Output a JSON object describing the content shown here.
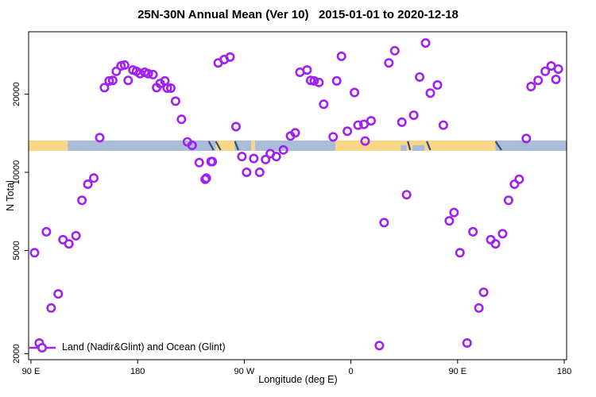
{
  "title": "25N-30N Annual Mean (Ver 10)   2015-01-01 to 2020-12-18",
  "chart_data": {
    "type": "scatter",
    "title": "25N-30N Annual Mean (Ver 10)   2015-01-01 to 2020-12-18",
    "xlabel": "Longitude (deg E)",
    "ylabel": "N Total",
    "x_axis": {
      "lim": [
        88,
        542
      ],
      "ticks": [
        {
          "pos": 90,
          "label": "90 E"
        },
        {
          "pos": 180,
          "label": "180"
        },
        {
          "pos": 270,
          "label": "90 W"
        },
        {
          "pos": 360,
          "label": "0"
        },
        {
          "pos": 450,
          "label": "90 E"
        },
        {
          "pos": 540,
          "label": "180"
        }
      ]
    },
    "y_axis": {
      "scale": "log",
      "lim": [
        1897,
        34800
      ],
      "ticks": [
        {
          "value": 2000,
          "label": "2000"
        },
        {
          "value": 5000,
          "label": "5000"
        },
        {
          "value": 10000,
          "label": "10000"
        },
        {
          "value": 20000,
          "label": "20000"
        }
      ]
    },
    "legend": {
      "label": "Land (Nadir&Glint) and Ocean (Glint)",
      "position": "bottom-left"
    },
    "marker": {
      "shape": "open-circle",
      "color": "#A020F0",
      "radius": 4.7,
      "stroke_width": 2.6
    },
    "map_band": {
      "v_from": 12100,
      "v_to": 13260,
      "land_color": "#FAD687",
      "ocean_color": "#A9BCD8",
      "coast_color": "#3D4A7A",
      "segments": [
        {
          "from": 88,
          "to": 121,
          "type": "land"
        },
        {
          "from": 121,
          "to": 246,
          "type": "ocean"
        },
        {
          "from": 246,
          "to": 262,
          "type": "land"
        },
        {
          "from": 262,
          "to": 276,
          "type": "ocean"
        },
        {
          "from": 276,
          "to": 279,
          "type": "land"
        },
        {
          "from": 279,
          "to": 347,
          "type": "ocean"
        },
        {
          "from": 347,
          "to": 482,
          "type": "land"
        },
        {
          "from": 482,
          "to": 542,
          "type": "ocean"
        }
      ],
      "coast_streaks": [
        {
          "from": 240,
          "to": 244
        },
        {
          "from": 246,
          "to": 250
        },
        {
          "from": 262,
          "to": 265
        },
        {
          "from": 408,
          "to": 410
        },
        {
          "from": 424,
          "to": 427
        },
        {
          "from": 482,
          "to": 487
        }
      ],
      "water_notches": [
        {
          "from": 402,
          "to": 407
        },
        {
          "from": 412,
          "to": 422
        }
      ]
    },
    "series": [
      {
        "name": "Land (Nadir&Glint) and Ocean (Glint)",
        "points": [
          [
            152,
            21200
          ],
          [
            156,
            22500
          ],
          [
            159,
            22600
          ],
          [
            162,
            24500
          ],
          [
            166,
            25700
          ],
          [
            169,
            25900
          ],
          [
            172,
            22600
          ],
          [
            176,
            24800
          ],
          [
            179,
            24500
          ],
          [
            182,
            24000
          ],
          [
            186,
            24300
          ],
          [
            189,
            24000
          ],
          [
            193,
            23800
          ],
          [
            196,
            21200
          ],
          [
            199,
            22000
          ],
          [
            203,
            22500
          ],
          [
            205,
            21100
          ],
          [
            208,
            21100
          ],
          [
            212,
            18800
          ],
          [
            217,
            16000
          ],
          [
            148,
            13600
          ],
          [
            222,
            13100
          ],
          [
            226,
            12700
          ],
          [
            232,
            10900
          ],
          [
            242,
            11000
          ],
          [
            238,
            9500
          ],
          [
            143,
            9500
          ],
          [
            138,
            9000
          ],
          [
            133,
            7800
          ],
          [
            103,
            5900
          ],
          [
            128,
            5700
          ],
          [
            117,
            5500
          ],
          [
            122,
            5300
          ],
          [
            93,
            4900
          ],
          [
            113,
            3400
          ],
          [
            107,
            3000
          ],
          [
            97,
            2200
          ],
          [
            248,
            26400
          ],
          [
            253,
            27200
          ],
          [
            258,
            27800
          ],
          [
            317,
            24300
          ],
          [
            323,
            24800
          ],
          [
            326,
            22600
          ],
          [
            329,
            22500
          ],
          [
            333,
            22200
          ],
          [
            352,
            28000
          ],
          [
            348,
            22500
          ],
          [
            363,
            20300
          ],
          [
            337,
            18300
          ],
          [
            397,
            29400
          ],
          [
            392,
            26400
          ],
          [
            263,
            15000
          ],
          [
            309,
            13800
          ],
          [
            313,
            14200
          ],
          [
            345,
            13700
          ],
          [
            357,
            14400
          ],
          [
            366,
            15200
          ],
          [
            371,
            15300
          ],
          [
            377,
            15800
          ],
          [
            372,
            13200
          ],
          [
            243,
            11000
          ],
          [
            237,
            9400
          ],
          [
            268,
            11500
          ],
          [
            278,
            11300
          ],
          [
            288,
            11200
          ],
          [
            292,
            11800
          ],
          [
            297,
            11500
          ],
          [
            303,
            12200
          ],
          [
            272,
            10000
          ],
          [
            283,
            10000
          ],
          [
            388,
            6400
          ],
          [
            384,
            2150
          ],
          [
            423,
            31500
          ],
          [
            418,
            23300
          ],
          [
            433,
            21700
          ],
          [
            427,
            20200
          ],
          [
            413,
            16600
          ],
          [
            403,
            15600
          ],
          [
            438,
            15200
          ],
          [
            512,
            21400
          ],
          [
            518,
            22600
          ],
          [
            524,
            24500
          ],
          [
            529,
            25700
          ],
          [
            535,
            25000
          ],
          [
            533,
            22800
          ],
          [
            508,
            13500
          ],
          [
            407,
            8200
          ],
          [
            498,
            9000
          ],
          [
            502,
            9400
          ],
          [
            493,
            7800
          ],
          [
            447,
            7000
          ],
          [
            443,
            6500
          ],
          [
            463,
            5900
          ],
          [
            478,
            5500
          ],
          [
            482,
            5300
          ],
          [
            488,
            5800
          ],
          [
            452,
            4900
          ],
          [
            472,
            3450
          ],
          [
            468,
            3000
          ],
          [
            458,
            2200
          ]
        ]
      }
    ]
  }
}
